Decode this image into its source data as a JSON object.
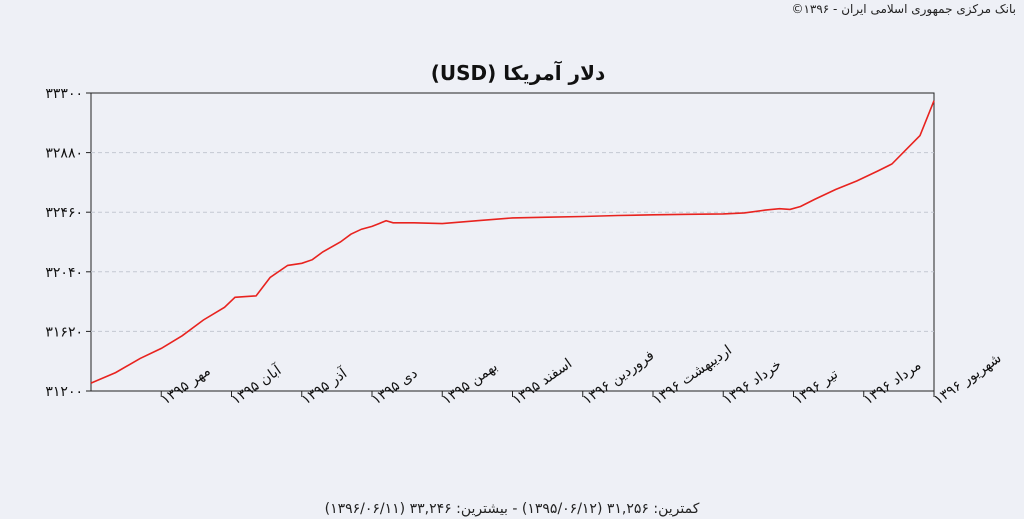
{
  "copyright": "بانک مرکزی جمهوری اسلامی ایران - ۱۳۹۶©",
  "footer": "کمترین: ۳۱,۲۵۶ (۱۳۹۵/۰۶/۱۲) - بیشترین: ۳۳,۲۴۶ (۱۳۹۶/۰۶/۱۱)",
  "chart_data": {
    "type": "line",
    "title": "دلار آمریکا (USD)",
    "xlabel": "",
    "ylabel": "",
    "ylim": [
      31200,
      33300
    ],
    "yticks": [
      31200,
      31620,
      32040,
      32460,
      32880,
      33300
    ],
    "ytick_labels": [
      "۳۱۲۰۰",
      "۳۱۶۲۰",
      "۳۲۰۴۰",
      "۳۲۴۶۰",
      "۳۲۸۸۰",
      "۳۳۳۰۰"
    ],
    "xlim": [
      0,
      12
    ],
    "xticks": [
      1,
      2,
      3,
      4,
      5,
      6,
      7,
      8,
      9,
      10,
      11,
      12
    ],
    "xtick_labels": [
      "مهر ۱۳۹۵",
      "آبان ۱۳۹۵",
      "آذر ۱۳۹۵",
      "دی ۱۳۹۵",
      "بهمن ۱۳۹۵",
      "اسفند ۱۳۹۵",
      "فروردین ۱۳۹۶",
      "اردیبهشت ۱۳۹۶",
      "خرداد ۱۳۹۶",
      "تیر ۱۳۹۶",
      "مرداد ۱۳۹۶",
      "شهریور ۱۳۹۶"
    ],
    "grid": true,
    "line_color": "#e8231f",
    "series": [
      {
        "x": [
          0,
          0.35,
          0.7,
          1.0,
          1.3,
          1.6,
          1.9,
          2.05,
          2.2,
          2.35,
          2.55,
          2.8,
          3.0,
          3.15,
          3.3,
          3.55,
          3.7,
          3.85,
          4.0,
          4.1,
          4.2,
          4.3,
          4.6,
          5.0,
          5.5,
          6.0,
          6.5,
          7.0,
          7.5,
          8.0,
          8.5,
          9.0,
          9.3,
          9.6,
          9.8,
          9.95,
          10.1,
          10.3,
          10.6,
          10.9,
          11.2,
          11.4,
          11.6,
          11.8,
          12.0
        ],
        "y": [
          31256,
          31330,
          31430,
          31500,
          31590,
          31700,
          31790,
          31860,
          31865,
          31870,
          32000,
          32085,
          32100,
          32125,
          32180,
          32250,
          32305,
          32340,
          32360,
          32380,
          32400,
          32385,
          32385,
          32380,
          32400,
          32420,
          32425,
          32430,
          32437,
          32442,
          32445,
          32448,
          32455,
          32475,
          32485,
          32480,
          32500,
          32550,
          32620,
          32680,
          32750,
          32800,
          32900,
          33000,
          33246
        ]
      }
    ]
  }
}
